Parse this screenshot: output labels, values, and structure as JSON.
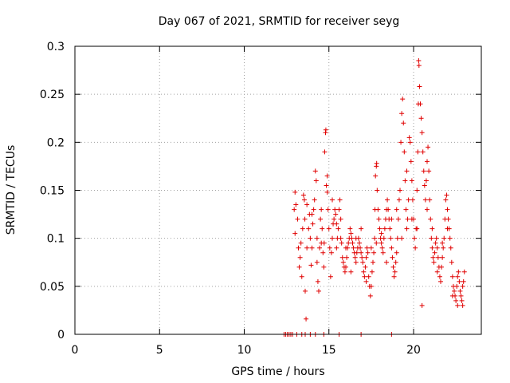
{
  "chart_data": {
    "type": "scatter",
    "title": "Day 067 of 2021, SRMTID for receiver seyg",
    "xlabel": "GPS time / hours",
    "ylabel": "SRMTID / TECUs",
    "xlim": [
      0,
      24
    ],
    "ylim": [
      0,
      0.3
    ],
    "x_ticks": [
      0,
      5,
      10,
      15,
      20
    ],
    "x_tick_labels": [
      "0",
      "5",
      "10",
      "15",
      "20"
    ],
    "y_ticks": [
      0,
      0.05,
      0.1,
      0.15,
      0.2,
      0.25,
      0.3
    ],
    "y_tick_labels": [
      "0",
      "0.05",
      "0.1",
      "0.15",
      "0.2",
      "0.25",
      "0.3"
    ],
    "grid": true,
    "marker": "plus",
    "color": "#e00000",
    "series": [
      {
        "name": "SRMTID",
        "points": [
          [
            12.35,
            0
          ],
          [
            12.45,
            0
          ],
          [
            12.55,
            0
          ],
          [
            12.65,
            0
          ],
          [
            12.75,
            0
          ],
          [
            12.85,
            0
          ],
          [
            13.1,
            0
          ],
          [
            13.4,
            0
          ],
          [
            13.6,
            0
          ],
          [
            13.9,
            0
          ],
          [
            14.2,
            0
          ],
          [
            14.7,
            0
          ],
          [
            15.6,
            0
          ],
          [
            16.9,
            0
          ],
          [
            18.7,
            0
          ],
          [
            12.95,
            0.13
          ],
          [
            13.0,
            0.148
          ],
          [
            13.05,
            0.135
          ],
          [
            13.2,
            0.09
          ],
          [
            13.25,
            0.07
          ],
          [
            13.3,
            0.08
          ],
          [
            13.35,
            0.095
          ],
          [
            13.45,
            0.11
          ],
          [
            13.5,
            0.145
          ],
          [
            13.55,
            0.14
          ],
          [
            13.58,
            0.12
          ],
          [
            13.6,
            0.045
          ],
          [
            13.65,
            0.016
          ],
          [
            13.7,
            0.09
          ],
          [
            13.8,
            0.11
          ],
          [
            13.85,
            0.125
          ],
          [
            13.9,
            0.1
          ],
          [
            13.95,
            0.072
          ],
          [
            14.0,
            0.09
          ],
          [
            14.05,
            0.115
          ],
          [
            14.1,
            0.13
          ],
          [
            14.15,
            0.14
          ],
          [
            14.2,
            0.17
          ],
          [
            14.25,
            0.16
          ],
          [
            14.3,
            0.075
          ],
          [
            14.35,
            0.055
          ],
          [
            14.4,
            0.045
          ],
          [
            14.45,
            0.09
          ],
          [
            14.5,
            0.12
          ],
          [
            14.55,
            0.13
          ],
          [
            14.6,
            0.11
          ],
          [
            14.65,
            0.085
          ],
          [
            14.7,
            0.07
          ],
          [
            14.72,
            0.095
          ],
          [
            14.75,
            0.19
          ],
          [
            14.8,
            0.21
          ],
          [
            14.82,
            0.213
          ],
          [
            14.85,
            0.155
          ],
          [
            14.9,
            0.148
          ],
          [
            14.95,
            0.13
          ],
          [
            15.0,
            0.11
          ],
          [
            15.05,
            0.09
          ],
          [
            15.1,
            0.06
          ],
          [
            15.15,
            0.085
          ],
          [
            15.2,
            0.1
          ],
          [
            15.25,
            0.115
          ],
          [
            15.3,
            0.12
          ],
          [
            15.35,
            0.13
          ],
          [
            15.4,
            0.125
          ],
          [
            15.45,
            0.115
          ],
          [
            15.5,
            0.1
          ],
          [
            15.55,
            0.11
          ],
          [
            15.6,
            0.13
          ],
          [
            15.65,
            0.14
          ],
          [
            15.7,
            0.12
          ],
          [
            15.75,
            0.095
          ],
          [
            15.8,
            0.08
          ],
          [
            15.85,
            0.075
          ],
          [
            15.9,
            0.07
          ],
          [
            15.95,
            0.065
          ],
          [
            16.0,
            0.07
          ],
          [
            16.05,
            0.08
          ],
          [
            16.1,
            0.09
          ],
          [
            16.15,
            0.095
          ],
          [
            16.2,
            0.1
          ],
          [
            16.25,
            0.11
          ],
          [
            16.3,
            0.105
          ],
          [
            16.35,
            0.1
          ],
          [
            16.4,
            0.095
          ],
          [
            16.45,
            0.09
          ],
          [
            16.5,
            0.085
          ],
          [
            16.55,
            0.08
          ],
          [
            16.6,
            0.075
          ],
          [
            16.65,
            0.085
          ],
          [
            16.7,
            0.09
          ],
          [
            16.75,
            0.1
          ],
          [
            16.8,
            0.095
          ],
          [
            16.85,
            0.09
          ],
          [
            16.9,
            0.085
          ],
          [
            16.95,
            0.08
          ],
          [
            17.0,
            0.075
          ],
          [
            17.05,
            0.065
          ],
          [
            17.1,
            0.06
          ],
          [
            17.15,
            0.07
          ],
          [
            17.2,
            0.08
          ],
          [
            17.25,
            0.09
          ],
          [
            17.3,
            0.085
          ],
          [
            17.35,
            0.06
          ],
          [
            17.4,
            0.05
          ],
          [
            17.45,
            0.04
          ],
          [
            17.5,
            0.05
          ],
          [
            17.55,
            0.065
          ],
          [
            17.6,
            0.075
          ],
          [
            17.65,
            0.085
          ],
          [
            17.7,
            0.1
          ],
          [
            17.72,
            0.13
          ],
          [
            17.75,
            0.165
          ],
          [
            17.8,
            0.175
          ],
          [
            17.82,
            0.178
          ],
          [
            17.85,
            0.15
          ],
          [
            17.9,
            0.13
          ],
          [
            17.95,
            0.12
          ],
          [
            18.0,
            0.11
          ],
          [
            18.05,
            0.1
          ],
          [
            18.1,
            0.095
          ],
          [
            18.15,
            0.09
          ],
          [
            18.2,
            0.085
          ],
          [
            18.25,
            0.1
          ],
          [
            18.3,
            0.11
          ],
          [
            18.35,
            0.12
          ],
          [
            18.4,
            0.13
          ],
          [
            18.45,
            0.14
          ],
          [
            18.5,
            0.13
          ],
          [
            18.55,
            0.12
          ],
          [
            18.6,
            0.11
          ],
          [
            18.65,
            0.1
          ],
          [
            18.7,
            0.09
          ],
          [
            18.75,
            0.08
          ],
          [
            18.8,
            0.07
          ],
          [
            18.85,
            0.06
          ],
          [
            18.9,
            0.065
          ],
          [
            18.95,
            0.075
          ],
          [
            19.0,
            0.085
          ],
          [
            19.05,
            0.1
          ],
          [
            19.1,
            0.12
          ],
          [
            19.15,
            0.14
          ],
          [
            19.2,
            0.15
          ],
          [
            19.25,
            0.2
          ],
          [
            19.3,
            0.23
          ],
          [
            19.35,
            0.245
          ],
          [
            19.4,
            0.22
          ],
          [
            19.45,
            0.19
          ],
          [
            19.5,
            0.16
          ],
          [
            19.55,
            0.13
          ],
          [
            19.6,
            0.11
          ],
          [
            19.65,
            0.12
          ],
          [
            19.7,
            0.14
          ],
          [
            19.75,
            0.205
          ],
          [
            19.8,
            0.2
          ],
          [
            19.85,
            0.18
          ],
          [
            19.9,
            0.16
          ],
          [
            19.95,
            0.14
          ],
          [
            20.0,
            0.12
          ],
          [
            20.05,
            0.1
          ],
          [
            20.1,
            0.09
          ],
          [
            20.15,
            0.11
          ],
          [
            20.2,
            0.15
          ],
          [
            20.25,
            0.19
          ],
          [
            20.28,
            0.24
          ],
          [
            20.3,
            0.285
          ],
          [
            20.32,
            0.28
          ],
          [
            20.35,
            0.258
          ],
          [
            20.4,
            0.24
          ],
          [
            20.45,
            0.225
          ],
          [
            20.5,
            0.21
          ],
          [
            20.55,
            0.19
          ],
          [
            20.6,
            0.17
          ],
          [
            20.65,
            0.155
          ],
          [
            20.7,
            0.14
          ],
          [
            20.75,
            0.16
          ],
          [
            20.8,
            0.18
          ],
          [
            20.85,
            0.195
          ],
          [
            20.9,
            0.17
          ],
          [
            20.95,
            0.14
          ],
          [
            21.0,
            0.12
          ],
          [
            21.05,
            0.1
          ],
          [
            21.1,
            0.09
          ],
          [
            21.15,
            0.08
          ],
          [
            21.2,
            0.075
          ],
          [
            21.25,
            0.085
          ],
          [
            21.3,
            0.095
          ],
          [
            21.35,
            0.1
          ],
          [
            21.4,
            0.09
          ],
          [
            21.45,
            0.08
          ],
          [
            21.5,
            0.07
          ],
          [
            21.55,
            0.06
          ],
          [
            21.6,
            0.055
          ],
          [
            21.65,
            0.07
          ],
          [
            21.7,
            0.08
          ],
          [
            21.75,
            0.09
          ],
          [
            21.8,
            0.1
          ],
          [
            21.85,
            0.12
          ],
          [
            21.9,
            0.14
          ],
          [
            21.95,
            0.145
          ],
          [
            22.0,
            0.13
          ],
          [
            22.05,
            0.12
          ],
          [
            22.1,
            0.11
          ],
          [
            22.15,
            0.1
          ],
          [
            22.2,
            0.09
          ],
          [
            22.25,
            0.075
          ],
          [
            22.3,
            0.06
          ],
          [
            22.35,
            0.05
          ],
          [
            22.4,
            0.045
          ],
          [
            22.45,
            0.04
          ],
          [
            22.5,
            0.035
          ],
          [
            22.55,
            0.05
          ],
          [
            22.6,
            0.06
          ],
          [
            22.65,
            0.065
          ],
          [
            22.7,
            0.055
          ],
          [
            22.75,
            0.045
          ],
          [
            22.8,
            0.04
          ],
          [
            22.85,
            0.035
          ],
          [
            22.9,
            0.03
          ],
          [
            22.95,
            0.055
          ],
          [
            23.0,
            0.065
          ],
          [
            13.0,
            0.105
          ],
          [
            13.15,
            0.12
          ],
          [
            13.4,
            0.06
          ],
          [
            13.7,
            0.135
          ],
          [
            14.0,
            0.125
          ],
          [
            14.3,
            0.1
          ],
          [
            14.55,
            0.095
          ],
          [
            14.9,
            0.165
          ],
          [
            15.2,
            0.14
          ],
          [
            15.45,
            0.09
          ],
          [
            15.7,
            0.1
          ],
          [
            16.0,
            0.09
          ],
          [
            16.3,
            0.065
          ],
          [
            16.6,
            0.1
          ],
          [
            16.9,
            0.11
          ],
          [
            17.2,
            0.055
          ],
          [
            17.5,
            0.09
          ],
          [
            17.8,
            0.095
          ],
          [
            18.1,
            0.105
          ],
          [
            18.4,
            0.075
          ],
          [
            18.7,
            0.12
          ],
          [
            19.0,
            0.13
          ],
          [
            19.3,
            0.1
          ],
          [
            19.6,
            0.17
          ],
          [
            19.9,
            0.12
          ],
          [
            20.2,
            0.11
          ],
          [
            20.5,
            0.03
          ],
          [
            20.8,
            0.13
          ],
          [
            21.1,
            0.11
          ],
          [
            21.4,
            0.065
          ],
          [
            21.7,
            0.095
          ],
          [
            22.0,
            0.11
          ],
          [
            22.3,
            0.04
          ],
          [
            22.6,
            0.03
          ],
          [
            22.9,
            0.05
          ]
        ]
      }
    ]
  }
}
